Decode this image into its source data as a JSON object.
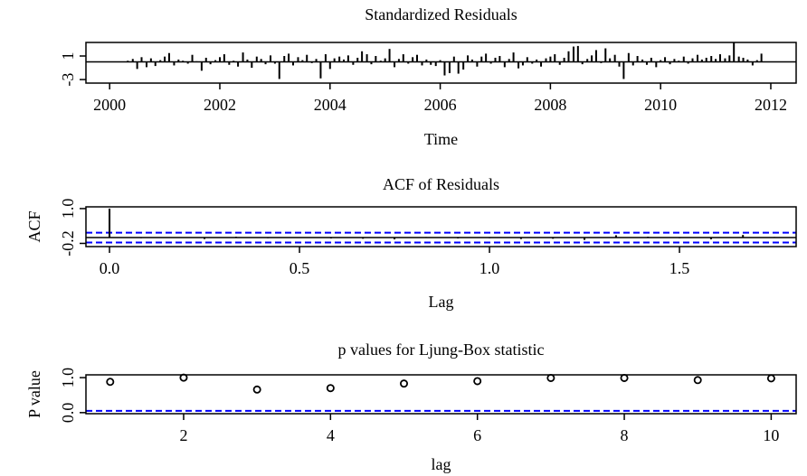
{
  "chart_data": [
    {
      "type": "spike",
      "title": "Standardized Residuals",
      "x_label": "Time",
      "color": "#000000",
      "xlim": [
        1999.57,
        2012.46
      ],
      "xticks": [
        2000,
        2002,
        2004,
        2006,
        2008,
        2010,
        2012
      ],
      "ylim": [
        -3.6,
        3.3
      ],
      "yticks": [
        -3,
        1
      ],
      "x": [
        2000.33,
        2000.42,
        2000.5,
        2000.58,
        2000.67,
        2000.75,
        2000.83,
        2000.92,
        2001,
        2001.08,
        2001.17,
        2001.25,
        2001.33,
        2001.42,
        2001.5,
        2001.58,
        2001.67,
        2001.75,
        2001.83,
        2001.92,
        2002,
        2002.08,
        2002.17,
        2002.25,
        2002.33,
        2002.42,
        2002.5,
        2002.58,
        2002.67,
        2002.75,
        2002.83,
        2002.92,
        2003,
        2003.08,
        2003.17,
        2003.25,
        2003.33,
        2003.42,
        2003.5,
        2003.58,
        2003.67,
        2003.75,
        2003.83,
        2003.92,
        2004,
        2004.08,
        2004.17,
        2004.25,
        2004.33,
        2004.42,
        2004.5,
        2004.58,
        2004.67,
        2004.75,
        2004.83,
        2004.92,
        2005,
        2005.08,
        2005.17,
        2005.25,
        2005.33,
        2005.42,
        2005.5,
        2005.58,
        2005.67,
        2005.75,
        2005.83,
        2005.92,
        2006,
        2006.08,
        2006.17,
        2006.25,
        2006.33,
        2006.42,
        2006.5,
        2006.58,
        2006.67,
        2006.75,
        2006.83,
        2006.92,
        2007,
        2007.08,
        2007.17,
        2007.25,
        2007.33,
        2007.42,
        2007.5,
        2007.58,
        2007.67,
        2007.75,
        2007.83,
        2007.92,
        2008,
        2008.08,
        2008.17,
        2008.25,
        2008.33,
        2008.42,
        2008.5,
        2008.58,
        2008.67,
        2008.75,
        2008.83,
        2008.92,
        2009,
        2009.08,
        2009.17,
        2009.25,
        2009.33,
        2009.42,
        2009.5,
        2009.58,
        2009.67,
        2009.75,
        2009.83,
        2009.92,
        2010,
        2010.08,
        2010.17,
        2010.25,
        2010.33,
        2010.42,
        2010.5,
        2010.58,
        2010.67,
        2010.75,
        2010.83,
        2010.92,
        2011,
        2011.08,
        2011.17,
        2011.25,
        2011.33,
        2011.42,
        2011.5,
        2011.58,
        2011.67,
        2011.75,
        2011.83
      ],
      "values": [
        0.2,
        0.5,
        -1.2,
        0.8,
        -0.9,
        0.6,
        -0.7,
        0.3,
        0.9,
        1.5,
        -0.6,
        0.4,
        0.2,
        -0.3,
        1.2,
        0.1,
        -1.5,
        0.7,
        -0.4,
        0.3,
        0.8,
        1.3,
        -0.5,
        0.2,
        -0.8,
        1.6,
        0.4,
        -1.0,
        0.9,
        0.5,
        -0.4,
        1.1,
        -0.3,
        -2.9,
        1.0,
        1.4,
        -0.6,
        0.8,
        0.3,
        1.2,
        -0.2,
        0.5,
        -2.8,
        1.3,
        -1.2,
        0.6,
        0.9,
        0.4,
        1.1,
        -0.5,
        0.7,
        1.8,
        1.3,
        -0.4,
        1.0,
        0.2,
        0.6,
        2.2,
        -0.9,
        0.5,
        1.3,
        -0.3,
        0.8,
        1.2,
        -0.6,
        0.4,
        -0.5,
        -0.7,
        0.3,
        -2.3,
        -1.9,
        0.9,
        -2.0,
        -1.3,
        1.1,
        0.4,
        -0.8,
        0.9,
        1.4,
        -0.3,
        0.7,
        1.0,
        -0.9,
        0.5,
        1.6,
        -1.1,
        -0.6,
        0.8,
        -0.3,
        0.4,
        -0.8,
        0.6,
        0.9,
        1.3,
        -0.5,
        0.7,
        1.8,
        2.6,
        2.7,
        -0.4,
        0.5,
        1.1,
        2.0,
        -0.2,
        2.3,
        0.6,
        1.2,
        -0.8,
        -2.9,
        1.5,
        -0.6,
        1.0,
        0.4,
        -0.5,
        0.7,
        -0.9,
        0.3,
        0.8,
        -0.4,
        0.5,
        0.2,
        0.9,
        -0.3,
        0.6,
        1.2,
        0.4,
        0.7,
        1.0,
        0.5,
        1.3,
        0.6,
        1.1,
        3.3,
        0.9,
        0.7,
        0.4,
        -0.6,
        0.3,
        1.4
      ]
    },
    {
      "type": "spike",
      "title": "ACF of Residuals",
      "x_label": "Lag",
      "y_label": "ACF",
      "color": "#000000",
      "xlim": [
        -0.062,
        1.807
      ],
      "xticks": [
        {
          "value": 0,
          "label": "0.0"
        },
        0.5,
        {
          "value": 1,
          "label": "1.0"
        },
        1.5
      ],
      "ylim": [
        -0.31,
        1.06
      ],
      "yticks": [
        -0.2,
        {
          "value": 1,
          "label": "1.0"
        }
      ],
      "reference_lines": [
        {
          "value": 0.17,
          "color": "#0000ff"
        },
        {
          "value": -0.17,
          "color": "#0000ff"
        }
      ],
      "x": [
        0,
        0.083,
        0.167,
        0.25,
        0.333,
        0.417,
        0.5,
        0.583,
        0.667,
        0.75,
        0.833,
        0.917,
        1,
        1.083,
        1.167,
        1.25,
        1.333,
        1.417,
        1.5,
        1.583,
        1.667,
        1.75
      ],
      "values": [
        1,
        -0.02,
        0.01,
        -0.05,
        0.03,
        -0.02,
        0.01,
        -0.03,
        -0.04,
        -0.06,
        0.02,
        -0.03,
        -0.02,
        -0.05,
        -0.04,
        -0.08,
        0.08,
        0.03,
        -0.02,
        -0.06,
        0.09,
        0.02
      ]
    },
    {
      "type": "scatter",
      "title": "p values for Ljung-Box statistic",
      "x_label": "lag",
      "y_label": "P value",
      "color": "#000000",
      "xlim": [
        0.67,
        10.34
      ],
      "xticks": [
        2,
        4,
        6,
        8,
        10
      ],
      "ylim": [
        -0.03,
        1.08
      ],
      "yticks": [
        {
          "value": 0,
          "label": "0.0"
        },
        {
          "value": 1,
          "label": "1.0"
        }
      ],
      "reference_lines": [
        {
          "value": 0.05,
          "color": "#0000ff"
        }
      ],
      "x": [
        1,
        2,
        3,
        4,
        5,
        6,
        7,
        8,
        9,
        10
      ],
      "values": [
        0.88,
        1.0,
        0.66,
        0.7,
        0.83,
        0.9,
        0.99,
        0.99,
        0.93,
        0.98
      ]
    }
  ]
}
